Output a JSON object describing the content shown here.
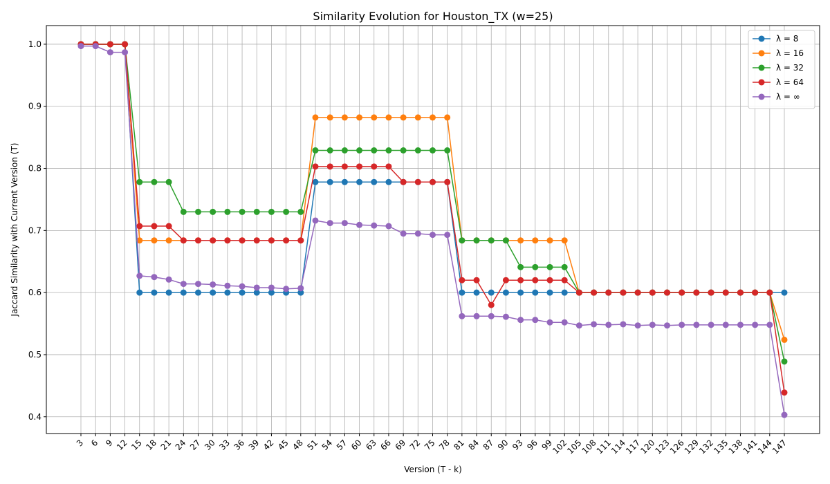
{
  "chart_data": {
    "type": "line",
    "title": "Similarity Evolution for Houston_TX (w=25)",
    "xlabel": "Version (T - k)",
    "ylabel": "Jaccard Similarity with Current Version (T)",
    "x": [
      3,
      6,
      9,
      12,
      15,
      18,
      21,
      24,
      27,
      30,
      33,
      36,
      39,
      42,
      45,
      48,
      51,
      54,
      57,
      60,
      63,
      66,
      69,
      72,
      75,
      78,
      81,
      84,
      87,
      90,
      93,
      96,
      99,
      102,
      105,
      108,
      111,
      114,
      117,
      120,
      123,
      126,
      129,
      132,
      135,
      138,
      141,
      144,
      147
    ],
    "ylim": [
      0.373,
      1.03
    ],
    "yticks": [
      "0.4",
      "0.5",
      "0.6",
      "0.7",
      "0.8",
      "0.9",
      "1.0"
    ],
    "grid": true,
    "legend_position": "top-right",
    "series": [
      {
        "name": "λ = 8",
        "color": "#1f77b4",
        "values": [
          1.0,
          1.0,
          1.0,
          1.0,
          0.6,
          0.6,
          0.6,
          0.6,
          0.6,
          0.6,
          0.6,
          0.6,
          0.6,
          0.6,
          0.6,
          0.6,
          0.778,
          0.778,
          0.778,
          0.778,
          0.778,
          0.778,
          0.778,
          0.778,
          0.778,
          0.778,
          0.6,
          0.6,
          0.6,
          0.6,
          0.6,
          0.6,
          0.6,
          0.6,
          0.6,
          0.6,
          0.6,
          0.6,
          0.6,
          0.6,
          0.6,
          0.6,
          0.6,
          0.6,
          0.6,
          0.6,
          0.6,
          0.6,
          0.6
        ]
      },
      {
        "name": "λ = 16",
        "color": "#ff7f0e",
        "values": [
          1.0,
          1.0,
          1.0,
          1.0,
          0.684,
          0.684,
          0.684,
          0.684,
          0.684,
          0.684,
          0.684,
          0.684,
          0.684,
          0.684,
          0.684,
          0.684,
          0.882,
          0.882,
          0.882,
          0.882,
          0.882,
          0.882,
          0.882,
          0.882,
          0.882,
          0.882,
          0.684,
          0.684,
          0.684,
          0.684,
          0.684,
          0.684,
          0.684,
          0.684,
          0.6,
          0.6,
          0.6,
          0.6,
          0.6,
          0.6,
          0.6,
          0.6,
          0.6,
          0.6,
          0.6,
          0.6,
          0.6,
          0.6,
          0.524
        ]
      },
      {
        "name": "λ = 32",
        "color": "#2ca02c",
        "values": [
          1.0,
          1.0,
          1.0,
          1.0,
          0.778,
          0.778,
          0.778,
          0.73,
          0.73,
          0.73,
          0.73,
          0.73,
          0.73,
          0.73,
          0.73,
          0.73,
          0.829,
          0.829,
          0.829,
          0.829,
          0.829,
          0.829,
          0.829,
          0.829,
          0.829,
          0.829,
          0.684,
          0.684,
          0.684,
          0.684,
          0.641,
          0.641,
          0.641,
          0.641,
          0.6,
          0.6,
          0.6,
          0.6,
          0.6,
          0.6,
          0.6,
          0.6,
          0.6,
          0.6,
          0.6,
          0.6,
          0.6,
          0.6,
          0.489
        ]
      },
      {
        "name": "λ = 64",
        "color": "#d62728",
        "values": [
          1.0,
          1.0,
          1.0,
          1.0,
          0.707,
          0.707,
          0.707,
          0.684,
          0.684,
          0.684,
          0.684,
          0.684,
          0.684,
          0.684,
          0.684,
          0.684,
          0.803,
          0.803,
          0.803,
          0.803,
          0.803,
          0.803,
          0.778,
          0.778,
          0.778,
          0.778,
          0.62,
          0.62,
          0.58,
          0.62,
          0.62,
          0.62,
          0.62,
          0.62,
          0.6,
          0.6,
          0.6,
          0.6,
          0.6,
          0.6,
          0.6,
          0.6,
          0.6,
          0.6,
          0.6,
          0.6,
          0.6,
          0.6,
          0.439
        ]
      },
      {
        "name": "λ = ∞",
        "color": "#9467bd",
        "values": [
          0.997,
          0.997,
          0.987,
          0.987,
          0.627,
          0.625,
          0.621,
          0.614,
          0.614,
          0.613,
          0.611,
          0.61,
          0.608,
          0.608,
          0.606,
          0.607,
          0.716,
          0.712,
          0.712,
          0.709,
          0.708,
          0.707,
          0.695,
          0.695,
          0.693,
          0.693,
          0.562,
          0.562,
          0.562,
          0.561,
          0.556,
          0.556,
          0.552,
          0.552,
          0.547,
          0.549,
          0.548,
          0.549,
          0.547,
          0.548,
          0.547,
          0.548,
          0.548,
          0.548,
          0.548,
          0.548,
          0.548,
          0.548,
          0.403
        ]
      }
    ]
  }
}
